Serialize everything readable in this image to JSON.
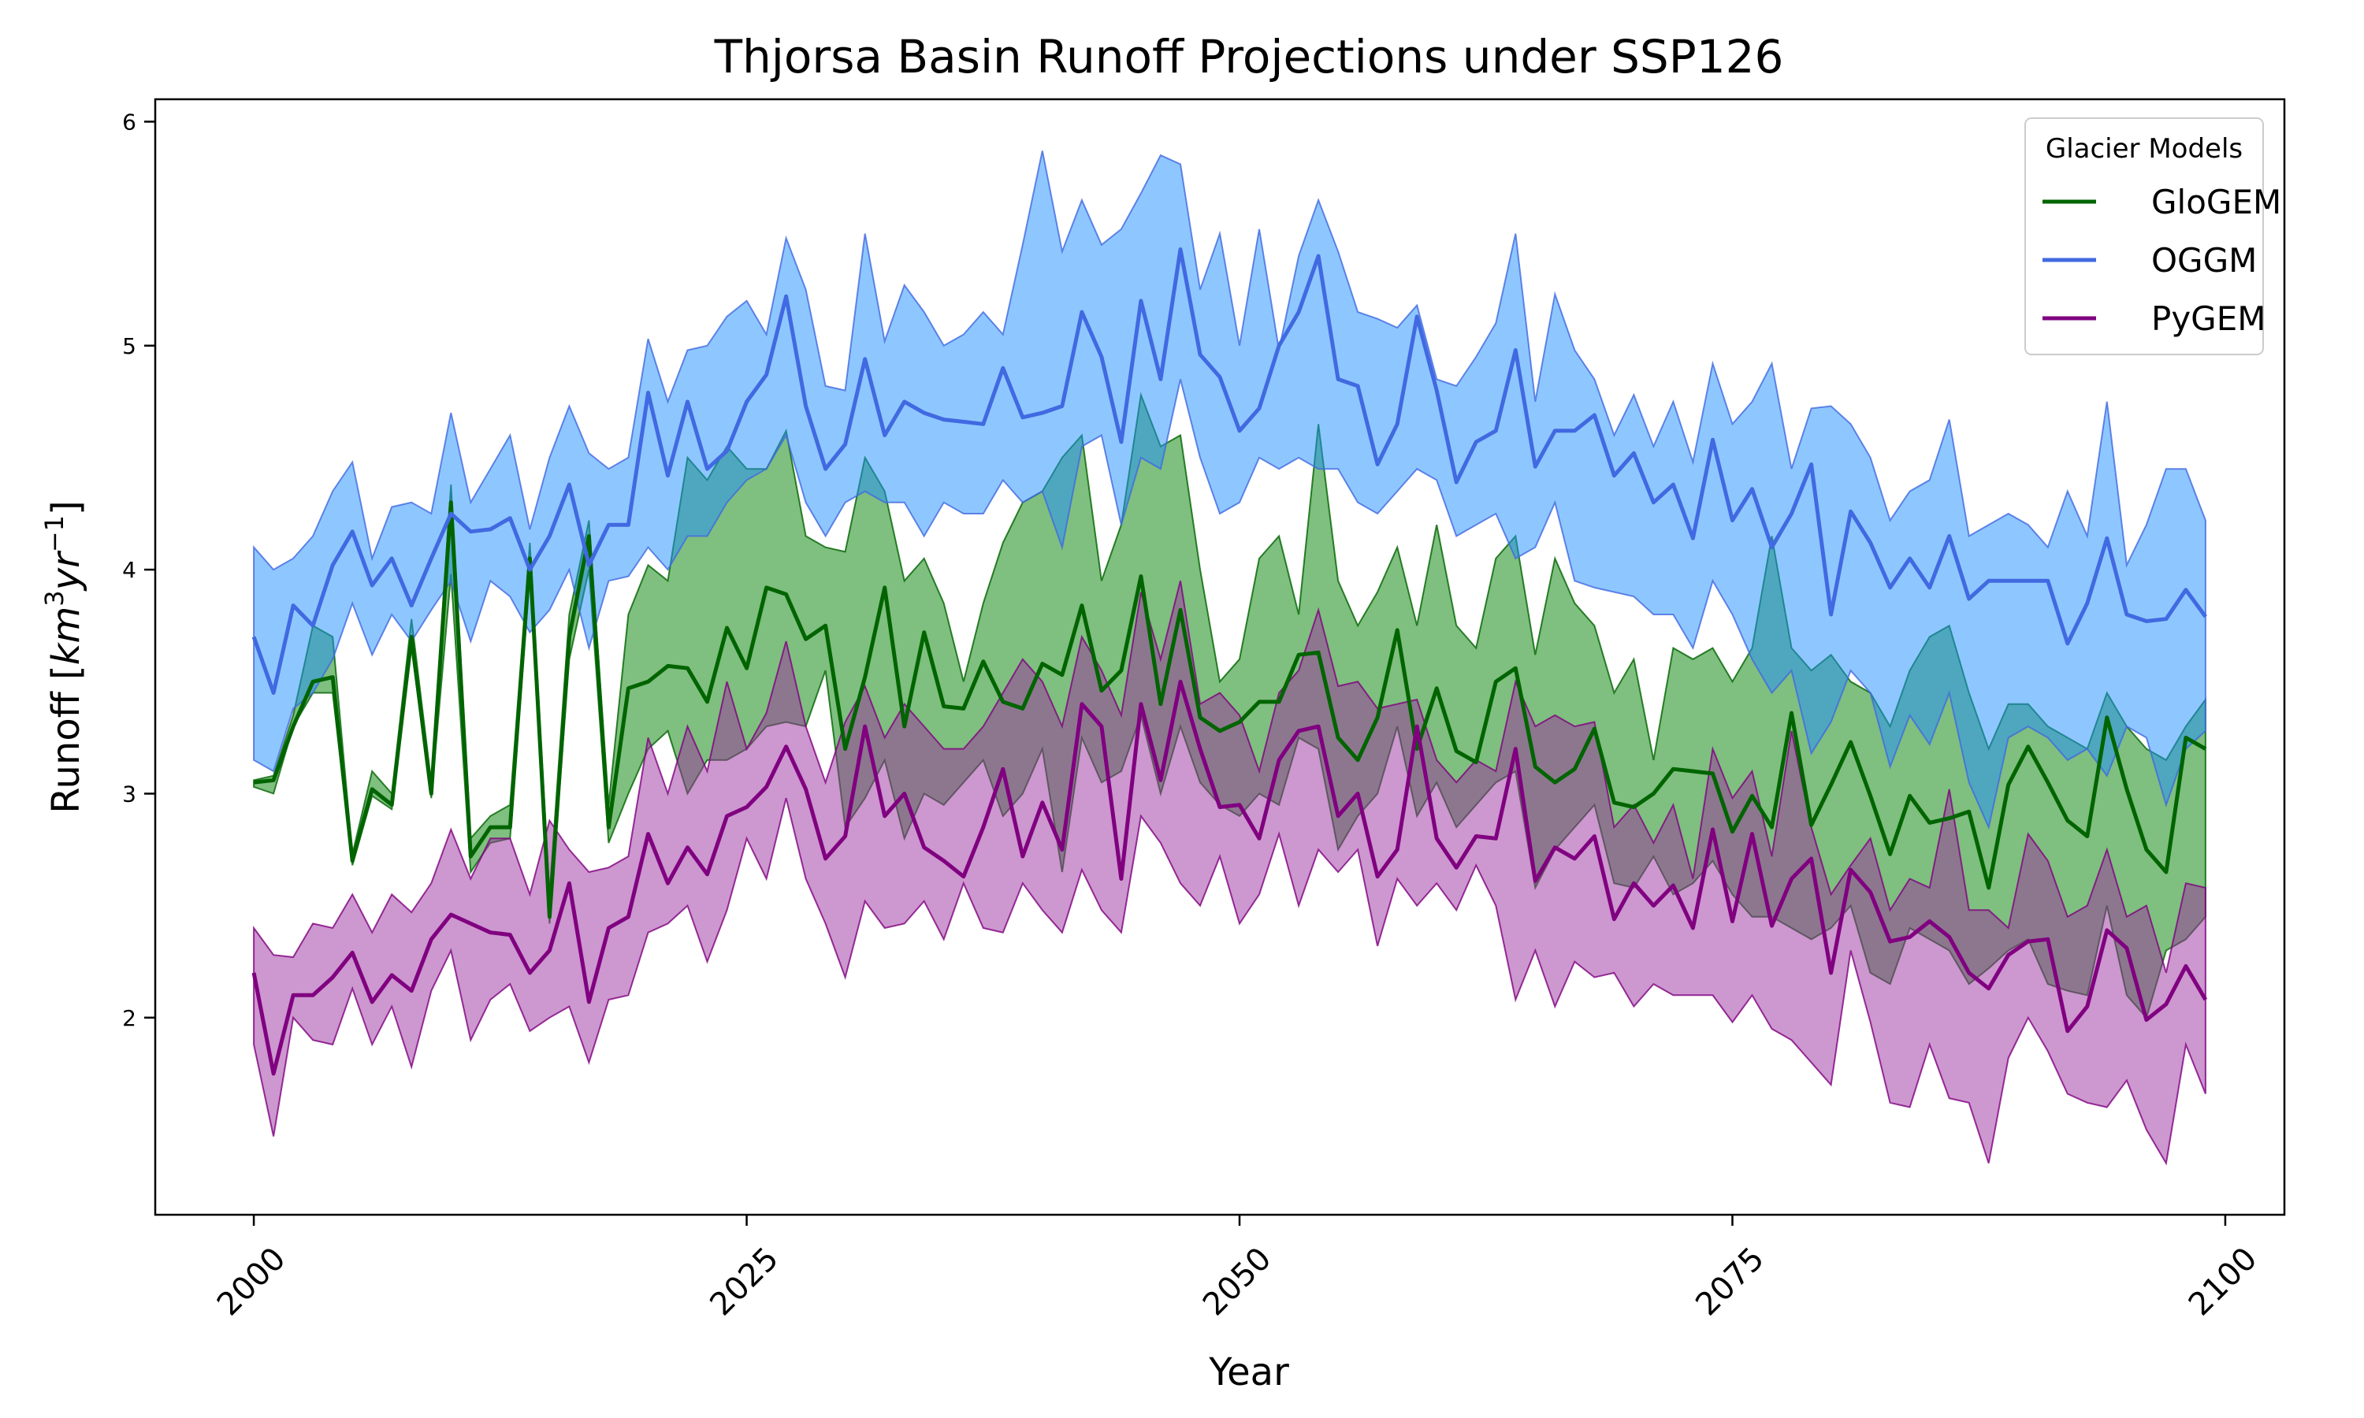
{
  "chart_data": {
    "type": "line",
    "title": "Thjorsa Basin Runoff Projections under SSP126",
    "xlabel": "Year",
    "ylabel_main": "Runoff [",
    "ylabel_km": "km",
    "ylabel_exp3": "3",
    "ylabel_yr": "yr",
    "ylabel_exp_neg1": "−1",
    "ylabel_close": "]",
    "xlim": [
      1995,
      2103
    ],
    "ylim": [
      1.12,
      6.1
    ],
    "x_ticks": [
      2000,
      2025,
      2050,
      2075,
      2100
    ],
    "x_tick_labels": [
      "2000",
      "2025",
      "2050",
      "2075",
      "2100"
    ],
    "y_ticks": [
      2,
      3,
      4,
      5,
      6
    ],
    "y_tick_labels": [
      "2",
      "3",
      "4",
      "5",
      "6"
    ],
    "x_start": 2000,
    "legend": {
      "title": "Glacier Models",
      "position": "top-right"
    },
    "series": [
      {
        "name": "GloGEM",
        "line_color": "#006400",
        "fill_color": "#008000",
        "values": [
          3.05,
          3.06,
          3.3,
          3.5,
          3.52,
          2.7,
          3.02,
          2.95,
          3.7,
          3.0,
          4.3,
          2.72,
          2.85,
          2.85,
          4.05,
          2.45,
          3.7,
          4.15,
          2.85,
          3.47,
          3.5,
          3.57,
          3.56,
          3.41,
          3.74,
          3.56,
          3.92,
          3.89,
          3.69,
          3.75,
          3.2,
          3.52,
          3.92,
          3.3,
          3.72,
          3.39,
          3.38,
          3.59,
          3.41,
          3.38,
          3.58,
          3.53,
          3.84,
          3.46,
          3.55,
          3.97,
          3.4,
          3.82,
          3.34,
          3.28,
          3.32,
          3.41,
          3.41,
          3.62,
          3.63,
          3.25,
          3.15,
          3.34,
          3.73,
          3.2,
          3.47,
          3.19,
          3.14,
          3.5,
          3.56,
          3.12,
          3.05,
          3.11,
          3.29,
          2.96,
          2.94,
          3.0,
          3.11,
          3.1,
          3.09,
          2.83,
          2.99,
          2.85,
          3.36,
          2.86,
          3.04,
          3.23,
          2.99,
          2.73,
          2.99,
          2.87,
          2.89,
          2.92,
          2.58,
          3.04,
          3.21,
          3.05,
          2.88,
          2.81,
          3.34,
          3.02,
          2.75,
          2.65,
          3.25,
          3.2
        ],
        "lower": [
          3.03,
          3.0,
          3.3,
          3.45,
          3.45,
          2.68,
          2.99,
          2.93,
          3.65,
          2.98,
          3.98,
          2.65,
          2.78,
          2.8,
          3.98,
          2.42,
          3.6,
          4.0,
          2.78,
          3.0,
          3.2,
          3.28,
          3.0,
          3.15,
          3.15,
          3.2,
          3.3,
          3.32,
          3.3,
          3.55,
          2.85,
          2.98,
          3.15,
          2.8,
          3.0,
          2.95,
          3.05,
          3.15,
          2.9,
          3.0,
          3.2,
          2.65,
          3.25,
          3.05,
          3.1,
          3.35,
          3.0,
          3.3,
          3.05,
          2.95,
          2.9,
          3.0,
          2.95,
          3.25,
          3.2,
          2.75,
          2.9,
          3.0,
          3.3,
          2.9,
          3.05,
          2.85,
          2.95,
          3.05,
          3.1,
          2.58,
          2.75,
          2.85,
          2.95,
          2.6,
          2.58,
          2.72,
          2.55,
          2.6,
          2.7,
          2.55,
          2.45,
          2.45,
          2.4,
          2.35,
          2.4,
          2.5,
          2.2,
          2.15,
          2.4,
          2.35,
          2.3,
          2.15,
          2.22,
          2.3,
          2.35,
          2.15,
          2.12,
          2.1,
          2.5,
          2.1,
          2.0,
          2.3,
          2.35,
          2.45
        ],
        "upper": [
          3.06,
          3.08,
          3.35,
          3.75,
          3.7,
          2.73,
          3.1,
          3.0,
          3.78,
          3.05,
          4.38,
          2.8,
          2.9,
          2.95,
          4.12,
          2.55,
          3.8,
          4.22,
          2.95,
          3.8,
          4.02,
          3.95,
          4.5,
          4.4,
          4.55,
          4.45,
          4.45,
          4.62,
          4.15,
          4.1,
          4.08,
          4.5,
          4.35,
          3.95,
          4.05,
          3.85,
          3.5,
          3.85,
          4.12,
          4.3,
          4.35,
          4.5,
          4.6,
          3.95,
          4.2,
          4.78,
          4.55,
          4.6,
          4.0,
          3.5,
          3.6,
          4.05,
          4.15,
          3.8,
          4.65,
          3.95,
          3.75,
          3.9,
          4.1,
          3.75,
          4.2,
          3.75,
          3.65,
          4.05,
          4.15,
          3.62,
          4.05,
          3.85,
          3.75,
          3.45,
          3.6,
          3.15,
          3.65,
          3.6,
          3.65,
          3.5,
          3.65,
          4.15,
          3.65,
          3.55,
          3.62,
          3.5,
          3.45,
          3.3,
          3.55,
          3.7,
          3.75,
          3.45,
          3.2,
          3.4,
          3.4,
          3.3,
          3.25,
          3.2,
          3.45,
          3.3,
          3.2,
          3.15,
          3.3,
          3.42
        ]
      },
      {
        "name": "OGGM",
        "line_color": "#4169e1",
        "fill_color": "#1e90ff",
        "values": [
          3.7,
          3.45,
          3.84,
          3.75,
          4.02,
          4.17,
          3.93,
          4.05,
          3.84,
          4.05,
          4.25,
          4.17,
          4.18,
          4.23,
          4.0,
          4.15,
          4.38,
          4.02,
          4.2,
          4.2,
          4.79,
          4.42,
          4.75,
          4.45,
          4.53,
          4.75,
          4.87,
          5.22,
          4.73,
          4.45,
          4.56,
          4.94,
          4.6,
          4.75,
          4.7,
          4.67,
          4.66,
          4.65,
          4.9,
          4.68,
          4.7,
          4.73,
          5.15,
          4.95,
          4.57,
          5.2,
          4.85,
          5.43,
          4.96,
          4.86,
          4.62,
          4.72,
          5.0,
          5.15,
          5.4,
          4.85,
          4.82,
          4.47,
          4.65,
          5.13,
          4.8,
          4.39,
          4.57,
          4.62,
          4.98,
          4.46,
          4.62,
          4.62,
          4.69,
          4.42,
          4.52,
          4.3,
          4.38,
          4.14,
          4.58,
          4.22,
          4.36,
          4.1,
          4.25,
          4.47,
          3.8,
          4.26,
          4.12,
          3.92,
          4.05,
          3.92,
          4.15,
          3.87,
          3.95,
          3.95,
          3.95,
          3.95,
          3.67,
          3.85,
          4.14,
          3.8,
          3.77,
          3.78,
          3.91,
          3.79
        ],
        "lower": [
          3.15,
          3.1,
          3.38,
          3.45,
          3.6,
          3.85,
          3.62,
          3.8,
          3.68,
          3.82,
          3.95,
          3.68,
          3.95,
          3.88,
          3.72,
          3.82,
          4.0,
          3.65,
          3.95,
          3.97,
          4.1,
          4.0,
          4.15,
          4.15,
          4.3,
          4.4,
          4.45,
          4.6,
          4.3,
          4.15,
          4.3,
          4.35,
          4.3,
          4.3,
          4.15,
          4.3,
          4.25,
          4.25,
          4.4,
          4.3,
          4.35,
          4.1,
          4.55,
          4.6,
          4.2,
          4.5,
          4.45,
          4.85,
          4.5,
          4.25,
          4.3,
          4.5,
          4.45,
          4.5,
          4.45,
          4.45,
          4.3,
          4.25,
          4.35,
          4.45,
          4.4,
          4.15,
          4.2,
          4.25,
          4.05,
          4.1,
          4.3,
          3.95,
          3.92,
          3.9,
          3.88,
          3.8,
          3.8,
          3.65,
          3.95,
          3.8,
          3.6,
          3.45,
          3.55,
          3.18,
          3.32,
          3.55,
          3.45,
          3.12,
          3.35,
          3.22,
          3.45,
          3.05,
          2.85,
          3.25,
          3.3,
          3.25,
          3.15,
          3.2,
          3.08,
          3.3,
          3.25,
          2.95,
          3.2,
          3.28
        ],
        "upper": [
          4.1,
          4.0,
          4.05,
          4.15,
          4.35,
          4.48,
          4.05,
          4.28,
          4.3,
          4.25,
          4.7,
          4.3,
          4.45,
          4.6,
          4.18,
          4.5,
          4.73,
          4.52,
          4.45,
          4.5,
          5.03,
          4.75,
          4.98,
          5.0,
          5.13,
          5.2,
          5.05,
          5.48,
          5.25,
          4.82,
          4.8,
          5.5,
          5.02,
          5.27,
          5.15,
          5.0,
          5.05,
          5.15,
          5.05,
          5.45,
          5.87,
          5.42,
          5.65,
          5.45,
          5.52,
          5.68,
          5.85,
          5.81,
          5.25,
          5.5,
          5.0,
          5.52,
          4.98,
          5.4,
          5.65,
          5.42,
          5.15,
          5.12,
          5.08,
          5.18,
          4.85,
          4.82,
          4.95,
          5.1,
          5.5,
          4.75,
          5.23,
          4.98,
          4.85,
          4.6,
          4.78,
          4.55,
          4.75,
          4.48,
          4.92,
          4.65,
          4.75,
          4.92,
          4.45,
          4.72,
          4.73,
          4.65,
          4.5,
          4.22,
          4.35,
          4.4,
          4.67,
          4.15,
          4.2,
          4.25,
          4.2,
          4.1,
          4.35,
          4.15,
          4.75,
          4.02,
          4.2,
          4.45,
          4.45,
          4.22
        ]
      },
      {
        "name": "PyGEM",
        "line_color": "#800080",
        "fill_color": "#9b30a0",
        "values": [
          2.2,
          1.75,
          2.1,
          2.1,
          2.18,
          2.29,
          2.07,
          2.19,
          2.12,
          2.35,
          2.46,
          2.42,
          2.38,
          2.37,
          2.2,
          2.3,
          2.6,
          2.07,
          2.4,
          2.45,
          2.82,
          2.6,
          2.76,
          2.64,
          2.9,
          2.94,
          3.03,
          3.21,
          3.02,
          2.71,
          2.81,
          3.3,
          2.9,
          3.0,
          2.76,
          2.7,
          2.63,
          2.85,
          3.11,
          2.72,
          2.96,
          2.75,
          3.4,
          3.3,
          2.62,
          3.4,
          3.06,
          3.5,
          3.2,
          2.94,
          2.95,
          2.8,
          3.15,
          3.28,
          3.3,
          2.9,
          3.0,
          2.63,
          2.75,
          3.3,
          2.8,
          2.67,
          2.81,
          2.8,
          3.2,
          2.61,
          2.76,
          2.71,
          2.81,
          2.44,
          2.6,
          2.5,
          2.59,
          2.4,
          2.84,
          2.43,
          2.82,
          2.41,
          2.62,
          2.71,
          2.2,
          2.66,
          2.56,
          2.34,
          2.36,
          2.43,
          2.36,
          2.2,
          2.13,
          2.28,
          2.34,
          2.35,
          1.94,
          2.05,
          2.39,
          2.31,
          1.99,
          2.06,
          2.23,
          2.08
        ],
        "lower": [
          1.88,
          1.47,
          2.0,
          1.9,
          1.88,
          2.13,
          1.88,
          2.05,
          1.78,
          2.12,
          2.3,
          1.9,
          2.08,
          2.15,
          1.94,
          2.0,
          2.05,
          1.8,
          2.08,
          2.1,
          2.38,
          2.42,
          2.5,
          2.25,
          2.48,
          2.8,
          2.62,
          2.98,
          2.62,
          2.42,
          2.18,
          2.52,
          2.4,
          2.42,
          2.52,
          2.35,
          2.6,
          2.4,
          2.38,
          2.6,
          2.48,
          2.38,
          2.66,
          2.48,
          2.38,
          2.9,
          2.78,
          2.6,
          2.5,
          2.72,
          2.42,
          2.55,
          2.82,
          2.5,
          2.75,
          2.65,
          2.75,
          2.32,
          2.62,
          2.5,
          2.6,
          2.48,
          2.68,
          2.5,
          2.08,
          2.3,
          2.05,
          2.25,
          2.18,
          2.2,
          2.05,
          2.15,
          2.1,
          2.1,
          2.1,
          1.98,
          2.1,
          1.95,
          1.9,
          1.8,
          1.7,
          2.3,
          1.98,
          1.62,
          1.6,
          1.88,
          1.64,
          1.62,
          1.35,
          1.82,
          2.0,
          1.85,
          1.66,
          1.62,
          1.6,
          1.72,
          1.5,
          1.35,
          1.88,
          1.66
        ],
        "upper": [
          2.4,
          2.28,
          2.27,
          2.42,
          2.4,
          2.55,
          2.38,
          2.55,
          2.47,
          2.6,
          2.84,
          2.62,
          2.8,
          2.8,
          2.55,
          2.88,
          2.75,
          2.65,
          2.67,
          2.72,
          3.25,
          3.0,
          3.3,
          3.1,
          3.5,
          3.2,
          3.36,
          3.68,
          3.3,
          3.05,
          3.32,
          3.48,
          3.25,
          3.4,
          3.3,
          3.2,
          3.2,
          3.3,
          3.45,
          3.6,
          3.5,
          3.3,
          3.7,
          3.55,
          3.35,
          3.9,
          3.6,
          3.95,
          3.4,
          3.45,
          3.35,
          3.1,
          3.45,
          3.55,
          3.82,
          3.48,
          3.5,
          3.38,
          3.4,
          3.42,
          3.15,
          3.05,
          3.15,
          3.1,
          3.5,
          3.3,
          3.35,
          3.3,
          3.32,
          2.85,
          2.95,
          2.78,
          2.95,
          2.62,
          3.2,
          2.98,
          3.1,
          2.72,
          3.28,
          2.85,
          2.55,
          2.68,
          2.8,
          2.48,
          2.62,
          2.58,
          3.02,
          2.48,
          2.48,
          2.4,
          2.82,
          2.7,
          2.45,
          2.5,
          2.75,
          2.45,
          2.5,
          2.2,
          2.6,
          2.58
        ]
      }
    ]
  }
}
